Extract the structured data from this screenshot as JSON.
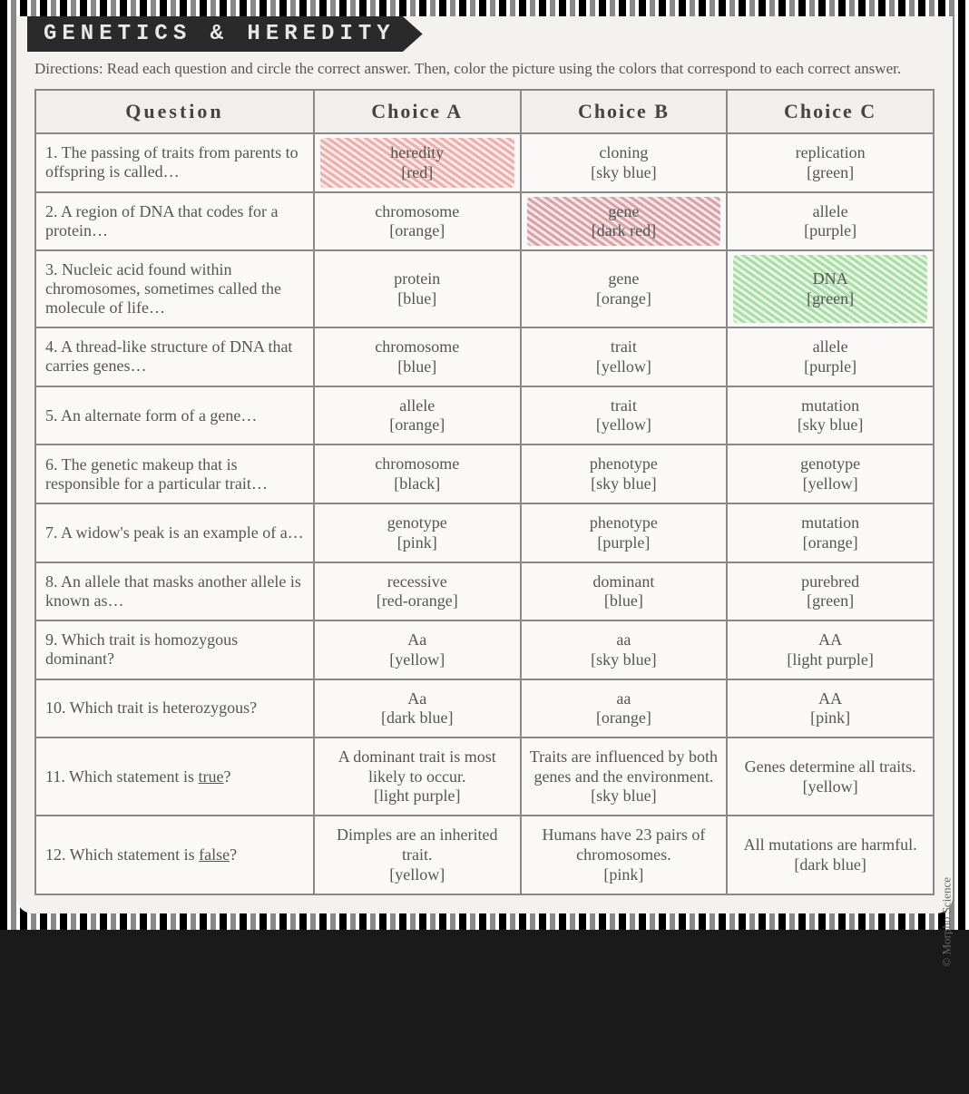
{
  "title": "GENETICS & HEREDITY",
  "directions": "Directions: Read each question and circle the correct answer. Then, color the picture using the colors that correspond to each correct answer.",
  "headers": {
    "question": "Question",
    "choiceA": "Choice A",
    "choiceB": "Choice B",
    "choiceC": "Choice C"
  },
  "copyright": "© Morpho Science",
  "colors": {
    "page_bg": "#f4f2ef",
    "border_color": "#888888",
    "text_color": "#555555",
    "banner_bg": "#2a2a2a",
    "scribble_red": "#e07070",
    "scribble_darkred": "#c05868",
    "scribble_green": "#60c860"
  },
  "rows": [
    {
      "num": "1.",
      "question": "The passing of traits from parents to offspring is called…",
      "a": {
        "answer": "heredity",
        "color": "[red]",
        "highlighted": "red"
      },
      "b": {
        "answer": "cloning",
        "color": "[sky blue]"
      },
      "c": {
        "answer": "replication",
        "color": "[green]"
      }
    },
    {
      "num": "2.",
      "question": "A region of DNA that codes for a protein…",
      "a": {
        "answer": "chromosome",
        "color": "[orange]"
      },
      "b": {
        "answer": "gene",
        "color": "[dark red]",
        "highlighted": "darkred"
      },
      "c": {
        "answer": "allele",
        "color": "[purple]"
      }
    },
    {
      "num": "3.",
      "question": "Nucleic acid found within chromosomes, sometimes called the molecule of life…",
      "a": {
        "answer": "protein",
        "color": "[blue]"
      },
      "b": {
        "answer": "gene",
        "color": "[orange]"
      },
      "c": {
        "answer": "DNA",
        "color": "[green]",
        "highlighted": "green"
      }
    },
    {
      "num": "4.",
      "question": "A thread-like structure of DNA that carries genes…",
      "a": {
        "answer": "chromosome",
        "color": "[blue]"
      },
      "b": {
        "answer": "trait",
        "color": "[yellow]"
      },
      "c": {
        "answer": "allele",
        "color": "[purple]"
      }
    },
    {
      "num": "5.",
      "question": "An alternate form of a gene…",
      "a": {
        "answer": "allele",
        "color": "[orange]"
      },
      "b": {
        "answer": "trait",
        "color": "[yellow]"
      },
      "c": {
        "answer": "mutation",
        "color": "[sky blue]"
      }
    },
    {
      "num": "6.",
      "question": "The genetic makeup that is responsible for a particular trait…",
      "a": {
        "answer": "chromosome",
        "color": "[black]"
      },
      "b": {
        "answer": "phenotype",
        "color": "[sky blue]"
      },
      "c": {
        "answer": "genotype",
        "color": "[yellow]"
      }
    },
    {
      "num": "7.",
      "question": "A widow's peak is an example of a…",
      "a": {
        "answer": "genotype",
        "color": "[pink]"
      },
      "b": {
        "answer": "phenotype",
        "color": "[purple]"
      },
      "c": {
        "answer": "mutation",
        "color": "[orange]"
      }
    },
    {
      "num": "8.",
      "question": "An allele that masks another allele is known as…",
      "a": {
        "answer": "recessive",
        "color": "[red-orange]"
      },
      "b": {
        "answer": "dominant",
        "color": "[blue]"
      },
      "c": {
        "answer": "purebred",
        "color": "[green]"
      }
    },
    {
      "num": "9.",
      "question": "Which trait is homozygous dominant?",
      "a": {
        "answer": "Aa",
        "color": "[yellow]"
      },
      "b": {
        "answer": "aa",
        "color": "[sky blue]"
      },
      "c": {
        "answer": "AA",
        "color": "[light purple]"
      }
    },
    {
      "num": "10.",
      "question": "Which trait is heterozygous?",
      "a": {
        "answer": "Aa",
        "color": "[dark blue]"
      },
      "b": {
        "answer": "aa",
        "color": "[orange]"
      },
      "c": {
        "answer": "AA",
        "color": "[pink]"
      }
    },
    {
      "num": "11.",
      "question_html": "Which statement is <span class='underline'>true</span>?",
      "a": {
        "answer": "A dominant trait is most likely to occur.",
        "color": "[light purple]"
      },
      "b": {
        "answer": "Traits are influenced by both genes and the environment.",
        "color": "[sky blue]"
      },
      "c": {
        "answer": "Genes determine all traits.",
        "color": "[yellow]"
      }
    },
    {
      "num": "12.",
      "question_html": "Which statement is <span class='underline'>false</span>?",
      "a": {
        "answer": "Dimples are an inherited trait.",
        "color": "[yellow]"
      },
      "b": {
        "answer": "Humans have 23 pairs of chromosomes.",
        "color": "[pink]"
      },
      "c": {
        "answer": "All mutations are harmful.",
        "color": "[dark blue]"
      }
    }
  ]
}
